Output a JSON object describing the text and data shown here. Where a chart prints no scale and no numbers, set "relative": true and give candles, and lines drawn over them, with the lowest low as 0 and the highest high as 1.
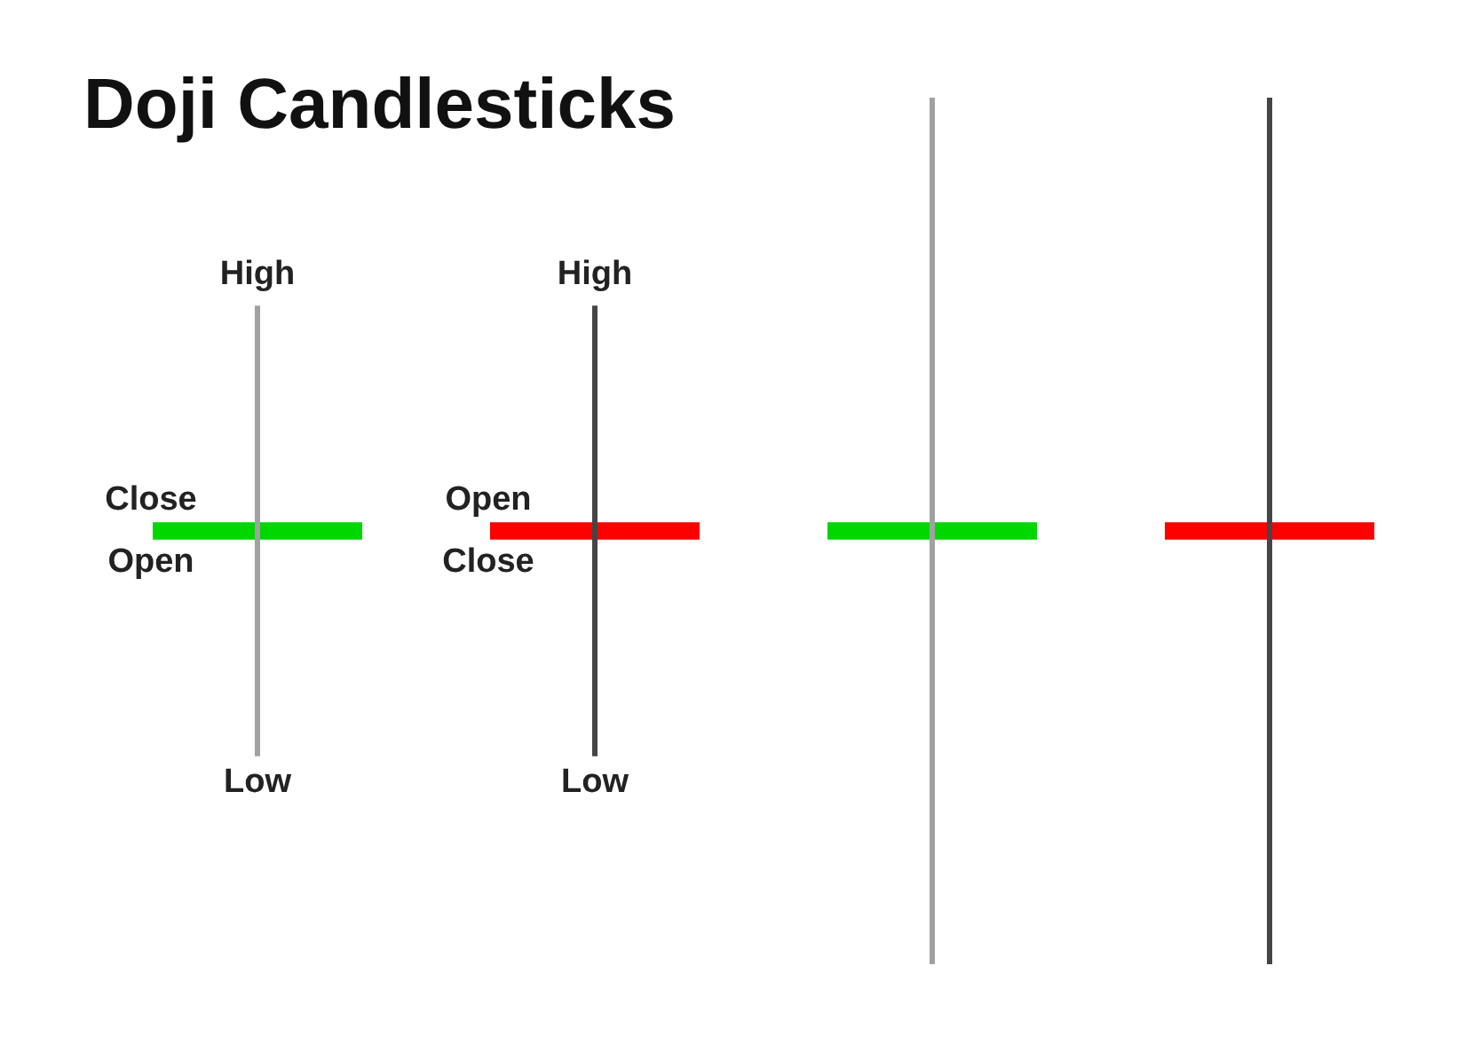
{
  "chart_data": {
    "type": "candlestick",
    "title": "Doji Candlesticks",
    "relative": true,
    "categories": [
      null,
      null,
      null,
      null
    ],
    "ohlc": [
      [
        0.49,
        0.76,
        0.24,
        0.51
      ],
      [
        0.51,
        0.76,
        0.24,
        0.49
      ],
      [
        0.49,
        1,
        0,
        0.51
      ],
      [
        0.51,
        1,
        0,
        0.49
      ]
    ],
    "colors": [
      "#00d600",
      "#ff0000",
      "#00d600",
      "#ff0000"
    ],
    "annotations": [
      {
        "text": "High",
        "y": 0.76
      },
      {
        "text": "Close",
        "y": 0.51
      },
      {
        "text": "Open",
        "y": 0.49
      },
      {
        "text": "Low",
        "y": 0.24
      },
      {
        "text": "High",
        "y": 0.76
      },
      {
        "text": "Open",
        "y": 0.51
      },
      {
        "text": "Close",
        "y": 0.49
      },
      {
        "text": "Low",
        "y": 0.24
      }
    ]
  }
}
